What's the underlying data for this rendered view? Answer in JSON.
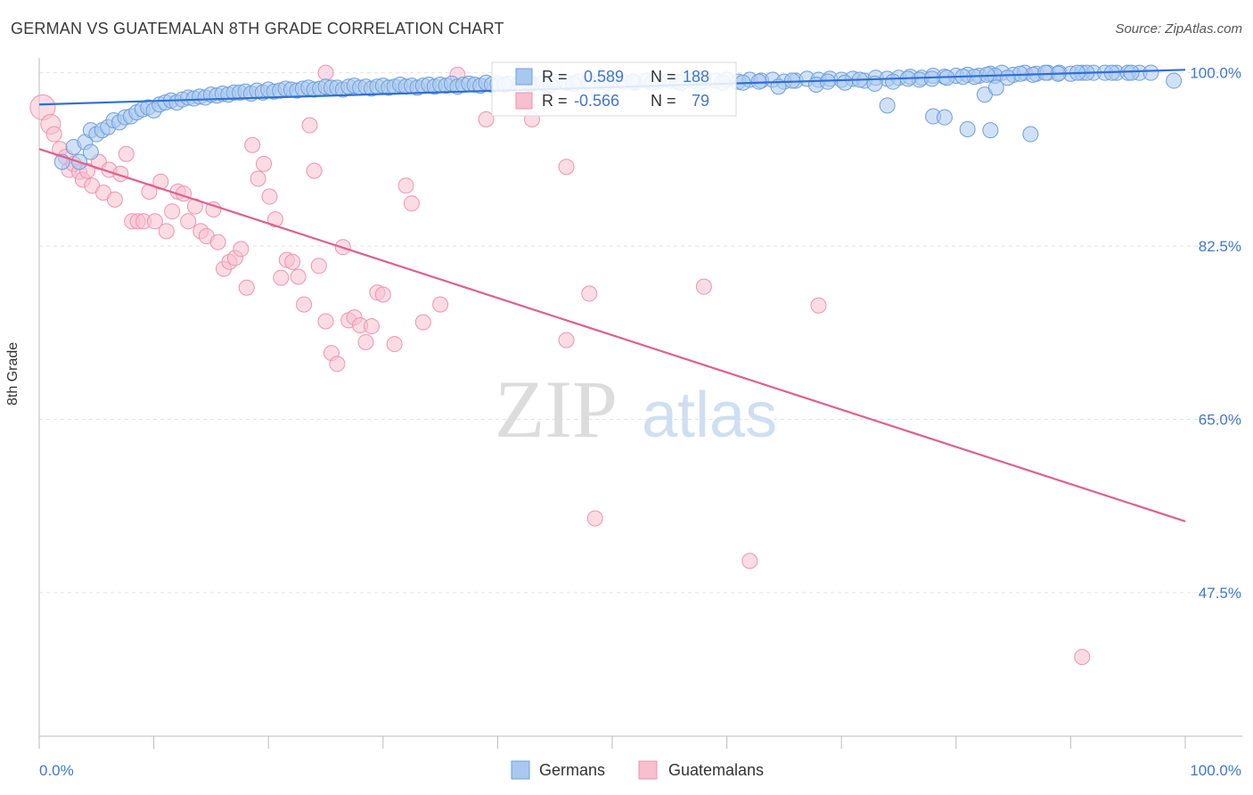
{
  "title": "GERMAN VS GUATEMALAN 8TH GRADE CORRELATION CHART",
  "source": "Source: ZipAtlas.com",
  "watermark": {
    "zip": "ZIP",
    "atlas": "atlas"
  },
  "colors": {
    "german_fill": "#a9c8f0",
    "german_stroke": "#6f9fd8",
    "german_line": "#2f6fd6",
    "guatemalan_fill": "#f7bfd0",
    "guatemalan_stroke": "#ef93b1",
    "guatemalan_line": "#e05f8e",
    "axis_label": "#3f77d0",
    "grid": "#e2e2e2"
  },
  "legend_box": {
    "rows": [
      {
        "r_label": "R =",
        "r_value": "0.589",
        "n_label": "N =",
        "n_value": "188"
      },
      {
        "r_label": "R =",
        "r_value": "-0.566",
        "n_label": "N =",
        "n_value": "79"
      }
    ]
  },
  "chart_data": {
    "type": "scatter",
    "title": "GERMAN VS GUATEMALAN 8TH GRADE CORRELATION CHART",
    "xlabel": "",
    "ylabel": "8th Grade",
    "xlim": [
      0,
      100
    ],
    "ylim": [
      33,
      101.5
    ],
    "x_tick_labels": [
      "0.0%",
      "100.0%"
    ],
    "y_ticks": [
      100.0,
      82.5,
      65.0,
      47.5
    ],
    "y_tick_labels": [
      "100.0%",
      "82.5%",
      "65.0%",
      "47.5%"
    ],
    "grid": true,
    "legend_position": "bottom-center",
    "series": [
      {
        "name": "Germans",
        "r": 0.589,
        "n": 188,
        "trend": {
          "x": [
            0,
            100
          ],
          "y": [
            96.8,
            100.3
          ]
        },
        "points": [
          [
            2.0,
            91.0
          ],
          [
            3.0,
            92.5
          ],
          [
            3.5,
            91.0
          ],
          [
            4.0,
            93.0
          ],
          [
            4.5,
            92.0
          ],
          [
            4.5,
            94.2
          ],
          [
            5.0,
            93.8
          ],
          [
            5.5,
            94.2
          ],
          [
            6.0,
            94.5
          ],
          [
            6.5,
            95.2
          ],
          [
            7.0,
            95.0
          ],
          [
            7.5,
            95.5
          ],
          [
            8.0,
            95.6
          ],
          [
            8.5,
            96.0
          ],
          [
            9.0,
            96.3
          ],
          [
            9.5,
            96.5
          ],
          [
            10.0,
            96.2
          ],
          [
            10.5,
            96.8
          ],
          [
            11.0,
            97.0
          ],
          [
            11.5,
            97.2
          ],
          [
            12.0,
            97.0
          ],
          [
            12.5,
            97.3
          ],
          [
            13.0,
            97.5
          ],
          [
            13.5,
            97.4
          ],
          [
            14.0,
            97.6
          ],
          [
            14.5,
            97.5
          ],
          [
            15.0,
            97.8
          ],
          [
            15.5,
            97.7
          ],
          [
            16.0,
            97.9
          ],
          [
            16.5,
            97.8
          ],
          [
            17.0,
            98.0
          ],
          [
            17.5,
            98.0
          ],
          [
            18.0,
            98.1
          ],
          [
            18.5,
            97.9
          ],
          [
            19.0,
            98.2
          ],
          [
            19.5,
            98.0
          ],
          [
            20.0,
            98.3
          ],
          [
            20.5,
            98.1
          ],
          [
            21.0,
            98.2
          ],
          [
            21.5,
            98.4
          ],
          [
            22.0,
            98.3
          ],
          [
            22.5,
            98.2
          ],
          [
            23.0,
            98.4
          ],
          [
            23.5,
            98.5
          ],
          [
            24.0,
            98.3
          ],
          [
            24.5,
            98.4
          ],
          [
            25.0,
            98.6
          ],
          [
            25.5,
            98.5
          ],
          [
            26.0,
            98.5
          ],
          [
            26.5,
            98.3
          ],
          [
            27.0,
            98.6
          ],
          [
            27.5,
            98.7
          ],
          [
            28.0,
            98.5
          ],
          [
            28.5,
            98.6
          ],
          [
            29.0,
            98.4
          ],
          [
            29.5,
            98.6
          ],
          [
            30.0,
            98.7
          ],
          [
            30.5,
            98.5
          ],
          [
            31.0,
            98.6
          ],
          [
            31.5,
            98.8
          ],
          [
            32.0,
            98.6
          ],
          [
            32.5,
            98.7
          ],
          [
            33.0,
            98.5
          ],
          [
            33.5,
            98.7
          ],
          [
            34.0,
            98.8
          ],
          [
            34.5,
            98.6
          ],
          [
            35.0,
            98.8
          ],
          [
            35.5,
            98.7
          ],
          [
            36.0,
            98.9
          ],
          [
            36.5,
            98.6
          ],
          [
            37.0,
            98.8
          ],
          [
            37.5,
            98.9
          ],
          [
            38.0,
            98.8
          ],
          [
            38.5,
            98.7
          ],
          [
            39.0,
            99.0
          ],
          [
            39.5,
            98.8
          ],
          [
            40.0,
            98.9
          ],
          [
            41.0,
            98.9
          ],
          [
            42.0,
            99.0
          ],
          [
            43.0,
            98.9
          ],
          [
            44.0,
            99.0
          ],
          [
            45.0,
            99.1
          ],
          [
            46.0,
            99.0
          ],
          [
            47.0,
            99.1
          ],
          [
            48.0,
            99.0
          ],
          [
            49.0,
            99.1
          ],
          [
            50.0,
            99.2
          ],
          [
            51.0,
            99.1
          ],
          [
            52.0,
            99.0
          ],
          [
            53.0,
            99.2
          ],
          [
            54.0,
            99.1
          ],
          [
            55.0,
            99.2
          ],
          [
            56.0,
            99.0
          ],
          [
            57.0,
            99.2
          ],
          [
            58.0,
            99.1
          ],
          [
            59.0,
            99.2
          ],
          [
            60.0,
            99.3
          ],
          [
            61.0,
            99.1
          ],
          [
            62.0,
            99.3
          ],
          [
            63.0,
            99.2
          ],
          [
            64.0,
            99.3
          ],
          [
            65.0,
            99.1
          ],
          [
            66.0,
            99.2
          ],
          [
            67.0,
            99.4
          ],
          [
            68.0,
            99.3
          ],
          [
            69.0,
            99.4
          ],
          [
            70.0,
            99.3
          ],
          [
            71.0,
            99.4
          ],
          [
            72.0,
            99.2
          ],
          [
            73.0,
            99.5
          ],
          [
            74.0,
            99.4
          ],
          [
            75.0,
            99.5
          ],
          [
            76.0,
            99.6
          ],
          [
            77.0,
            99.5
          ],
          [
            78.0,
            99.7
          ],
          [
            79.0,
            99.6
          ],
          [
            80.0,
            99.7
          ],
          [
            81.0,
            99.8
          ],
          [
            82.0,
            99.7
          ],
          [
            83.0,
            99.9
          ],
          [
            84.0,
            100.0
          ],
          [
            85.0,
            99.8
          ],
          [
            86.0,
            100.0
          ],
          [
            87.0,
            99.9
          ],
          [
            88.0,
            100.0
          ],
          [
            89.0,
            100.0
          ],
          [
            90.0,
            99.9
          ],
          [
            91.0,
            100.0
          ],
          [
            92.0,
            100.0
          ],
          [
            93.0,
            100.0
          ],
          [
            94.0,
            100.0
          ],
          [
            95.0,
            100.0
          ],
          [
            96.0,
            100.0
          ],
          [
            97.0,
            100.0
          ],
          [
            99.0,
            99.2
          ],
          [
            64.5,
            98.6
          ],
          [
            67.8,
            98.8
          ],
          [
            70.3,
            99.0
          ],
          [
            72.9,
            98.9
          ],
          [
            74.5,
            99.1
          ],
          [
            76.8,
            99.3
          ],
          [
            79.2,
            99.5
          ],
          [
            81.6,
            99.6
          ],
          [
            83.4,
            99.7
          ],
          [
            86.7,
            99.8
          ],
          [
            88.9,
            99.9
          ],
          [
            91.4,
            100.0
          ],
          [
            93.6,
            100.0
          ],
          [
            95.3,
            100.0
          ],
          [
            57.5,
            98.9
          ],
          [
            59.6,
            99.0
          ],
          [
            61.4,
            99.0
          ],
          [
            62.8,
            99.1
          ],
          [
            65.7,
            99.2
          ],
          [
            68.8,
            99.1
          ],
          [
            71.6,
            99.3
          ],
          [
            75.8,
            99.4
          ],
          [
            77.9,
            99.4
          ],
          [
            80.6,
            99.6
          ],
          [
            82.7,
            99.8
          ],
          [
            85.6,
            99.9
          ],
          [
            87.8,
            100.0
          ],
          [
            90.6,
            100.0
          ],
          [
            49.5,
            99.0
          ],
          [
            51.8,
            99.1
          ],
          [
            53.5,
            99.0
          ],
          [
            55.7,
            99.1
          ],
          [
            46.6,
            98.9
          ],
          [
            44.6,
            98.8
          ],
          [
            42.7,
            98.9
          ],
          [
            40.6,
            98.8
          ],
          [
            74.0,
            96.7
          ],
          [
            78.0,
            95.6
          ],
          [
            79.0,
            95.5
          ],
          [
            81.0,
            94.3
          ],
          [
            82.5,
            97.8
          ],
          [
            83.5,
            98.5
          ],
          [
            84.5,
            99.5
          ],
          [
            83.0,
            94.2
          ],
          [
            86.5,
            93.8
          ]
        ]
      },
      {
        "name": "Guatemalans",
        "r": -0.566,
        "n": 79,
        "trend": {
          "x": [
            0,
            100
          ],
          "y": [
            92.3,
            54.7
          ]
        },
        "points": [
          [
            0.3,
            96.5
          ],
          [
            1.0,
            94.8
          ],
          [
            1.3,
            93.8
          ],
          [
            1.8,
            92.3
          ],
          [
            2.3,
            91.5
          ],
          [
            2.6,
            90.2
          ],
          [
            3.0,
            90.8
          ],
          [
            3.5,
            90.0
          ],
          [
            3.8,
            89.2
          ],
          [
            4.2,
            90.1
          ],
          [
            4.6,
            88.6
          ],
          [
            5.2,
            91.0
          ],
          [
            5.6,
            87.9
          ],
          [
            6.1,
            90.2
          ],
          [
            6.6,
            87.2
          ],
          [
            7.1,
            89.8
          ],
          [
            7.6,
            91.8
          ],
          [
            8.1,
            85.0
          ],
          [
            8.6,
            85.0
          ],
          [
            9.1,
            85.0
          ],
          [
            9.6,
            88.0
          ],
          [
            10.1,
            85.0
          ],
          [
            10.6,
            89.0
          ],
          [
            11.1,
            84.0
          ],
          [
            11.6,
            86.0
          ],
          [
            12.1,
            88.0
          ],
          [
            12.6,
            87.8
          ],
          [
            13.0,
            85.0
          ],
          [
            13.6,
            86.5
          ],
          [
            14.1,
            84.0
          ],
          [
            14.6,
            83.5
          ],
          [
            15.2,
            86.2
          ],
          [
            15.6,
            82.9
          ],
          [
            16.1,
            80.2
          ],
          [
            16.6,
            80.9
          ],
          [
            17.1,
            81.3
          ],
          [
            17.6,
            82.2
          ],
          [
            18.1,
            78.3
          ],
          [
            18.6,
            92.7
          ],
          [
            19.1,
            89.3
          ],
          [
            19.6,
            90.8
          ],
          [
            20.1,
            87.5
          ],
          [
            20.6,
            85.2
          ],
          [
            21.1,
            79.3
          ],
          [
            21.6,
            81.1
          ],
          [
            22.1,
            80.9
          ],
          [
            22.6,
            79.4
          ],
          [
            23.1,
            76.6
          ],
          [
            23.6,
            94.7
          ],
          [
            24.0,
            90.1
          ],
          [
            24.4,
            80.5
          ],
          [
            25.0,
            74.9
          ],
          [
            25.5,
            71.7
          ],
          [
            26.0,
            70.6
          ],
          [
            26.5,
            82.4
          ],
          [
            27.0,
            75.0
          ],
          [
            27.5,
            75.3
          ],
          [
            28.0,
            74.5
          ],
          [
            28.5,
            72.8
          ],
          [
            29.0,
            74.4
          ],
          [
            29.5,
            77.8
          ],
          [
            30.0,
            77.6
          ],
          [
            31.0,
            72.6
          ],
          [
            32.0,
            88.6
          ],
          [
            32.5,
            86.8
          ],
          [
            33.5,
            74.8
          ],
          [
            35.0,
            76.6
          ],
          [
            36.5,
            99.8
          ],
          [
            39.0,
            95.3
          ],
          [
            43.0,
            95.3
          ],
          [
            46.0,
            90.5
          ],
          [
            46.0,
            73.0
          ],
          [
            48.0,
            77.7
          ],
          [
            48.5,
            55.0
          ],
          [
            58.0,
            78.4
          ],
          [
            62.0,
            50.7
          ],
          [
            68.0,
            76.5
          ],
          [
            91.0,
            41.0
          ],
          [
            25.0,
            100.0
          ]
        ]
      }
    ]
  }
}
